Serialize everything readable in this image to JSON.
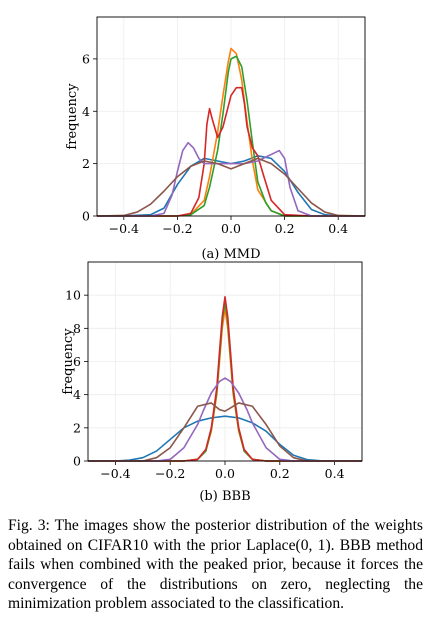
{
  "chart_data": [
    {
      "type": "line",
      "caption": "(a) MMD",
      "ylabel": "frequency",
      "xlabel": "",
      "xlim": [
        -0.5,
        0.5
      ],
      "ylim": [
        0,
        7.6
      ],
      "xticks": [
        "−0.4",
        "−0.2",
        "0.0",
        "0.2",
        "0.4"
      ],
      "yticks": [
        "0",
        "2",
        "4",
        "6"
      ],
      "grid": true,
      "series": [
        {
          "color": "#1f77b4",
          "x": [
            -0.5,
            -0.4,
            -0.3,
            -0.25,
            -0.2,
            -0.15,
            -0.1,
            -0.05,
            0.0,
            0.05,
            0.1,
            0.15,
            0.2,
            0.25,
            0.3,
            0.35,
            0.4,
            0.5
          ],
          "y": [
            0,
            0,
            0.05,
            0.3,
            1.2,
            1.9,
            2.2,
            2.1,
            2.0,
            2.1,
            2.3,
            2.2,
            1.7,
            0.9,
            0.25,
            0.05,
            0,
            0
          ]
        },
        {
          "color": "#ff7f0e",
          "x": [
            -0.5,
            -0.3,
            -0.2,
            -0.15,
            -0.1,
            -0.08,
            -0.05,
            -0.03,
            -0.01,
            0.0,
            0.02,
            0.04,
            0.06,
            0.08,
            0.1,
            0.15,
            0.2,
            0.3,
            0.5
          ],
          "y": [
            0,
            0,
            0,
            0.05,
            0.6,
            1.5,
            3.2,
            4.6,
            5.9,
            6.4,
            6.2,
            5.2,
            3.6,
            2.1,
            1.0,
            0.2,
            0,
            0,
            0
          ]
        },
        {
          "color": "#2ca02c",
          "x": [
            -0.5,
            -0.3,
            -0.2,
            -0.15,
            -0.1,
            -0.08,
            -0.05,
            -0.03,
            -0.01,
            0.0,
            0.02,
            0.04,
            0.06,
            0.08,
            0.1,
            0.13,
            0.15,
            0.2,
            0.3,
            0.5
          ],
          "y": [
            0,
            0,
            0,
            0.05,
            0.4,
            1.1,
            2.5,
            3.9,
            5.5,
            6.0,
            6.1,
            5.7,
            4.4,
            2.8,
            1.3,
            0.5,
            0.2,
            0,
            0,
            0
          ]
        },
        {
          "color": "#d62728",
          "x": [
            -0.5,
            -0.3,
            -0.2,
            -0.15,
            -0.12,
            -0.1,
            -0.09,
            -0.08,
            -0.07,
            -0.05,
            -0.03,
            -0.01,
            0.0,
            0.02,
            0.04,
            0.05,
            0.06,
            0.08,
            0.1,
            0.12,
            0.15,
            0.2,
            0.3,
            0.5
          ],
          "y": [
            0,
            0,
            0,
            0.1,
            0.7,
            2.0,
            3.5,
            4.1,
            3.7,
            3.0,
            3.4,
            4.2,
            4.6,
            4.9,
            4.9,
            4.3,
            3.4,
            2.6,
            2.3,
            1.6,
            0.6,
            0.05,
            0,
            0
          ]
        },
        {
          "color": "#9467bd",
          "x": [
            -0.5,
            -0.3,
            -0.25,
            -0.22,
            -0.2,
            -0.18,
            -0.16,
            -0.14,
            -0.12,
            -0.1,
            -0.05,
            0.0,
            0.05,
            0.1,
            0.12,
            0.14,
            0.16,
            0.18,
            0.2,
            0.22,
            0.25,
            0.3,
            0.5
          ],
          "y": [
            0,
            0,
            0.1,
            0.8,
            1.7,
            2.5,
            2.8,
            2.6,
            2.2,
            2.0,
            2.0,
            2.0,
            2.0,
            2.1,
            2.2,
            2.3,
            2.4,
            2.5,
            2.2,
            1.1,
            0.2,
            0,
            0
          ]
        },
        {
          "color": "#8c564b",
          "x": [
            -0.5,
            -0.4,
            -0.35,
            -0.3,
            -0.25,
            -0.2,
            -0.15,
            -0.1,
            -0.05,
            0.0,
            0.05,
            0.1,
            0.15,
            0.2,
            0.25,
            0.3,
            0.35,
            0.4,
            0.5
          ],
          "y": [
            0,
            0.02,
            0.15,
            0.45,
            0.95,
            1.5,
            1.9,
            2.1,
            2.0,
            1.8,
            2.0,
            2.2,
            2.0,
            1.6,
            1.05,
            0.5,
            0.15,
            0.02,
            0
          ]
        }
      ]
    },
    {
      "type": "line",
      "caption": "(b) BBB",
      "ylabel": "frequency",
      "xlabel": "",
      "xlim": [
        -0.5,
        0.5
      ],
      "ylim": [
        0,
        12
      ],
      "xticks": [
        "−0.4",
        "−0.2",
        "0.0",
        "0.2",
        "0.4"
      ],
      "yticks": [
        "0",
        "2",
        "4",
        "6",
        "8",
        "10"
      ],
      "grid": true,
      "series": [
        {
          "color": "#1f77b4",
          "x": [
            -0.5,
            -0.4,
            -0.35,
            -0.3,
            -0.25,
            -0.2,
            -0.15,
            -0.1,
            -0.05,
            0.0,
            0.05,
            0.1,
            0.15,
            0.2,
            0.25,
            0.3,
            0.35,
            0.4,
            0.5
          ],
          "y": [
            0,
            0,
            0.05,
            0.2,
            0.6,
            1.3,
            2.0,
            2.4,
            2.6,
            2.7,
            2.6,
            2.3,
            1.8,
            1.0,
            0.35,
            0.08,
            0.01,
            0,
            0
          ]
        },
        {
          "color": "#ff7f0e",
          "x": [
            -0.5,
            -0.15,
            -0.1,
            -0.07,
            -0.05,
            -0.03,
            -0.02,
            -0.01,
            0.0,
            0.01,
            0.02,
            0.03,
            0.05,
            0.07,
            0.1,
            0.15,
            0.5
          ],
          "y": [
            0,
            0,
            0.1,
            0.6,
            1.8,
            4.0,
            6.0,
            8.0,
            9.2,
            8.0,
            6.0,
            4.0,
            1.8,
            0.6,
            0.1,
            0,
            0
          ]
        },
        {
          "color": "#2ca02c",
          "x": [
            -0.5,
            -0.15,
            -0.1,
            -0.07,
            -0.05,
            -0.03,
            -0.02,
            -0.01,
            0.0,
            0.01,
            0.02,
            0.03,
            0.05,
            0.07,
            0.1,
            0.15,
            0.5
          ],
          "y": [
            0,
            0,
            0.1,
            0.6,
            1.9,
            4.2,
            6.3,
            8.4,
            9.6,
            8.4,
            6.3,
            4.2,
            1.9,
            0.6,
            0.1,
            0,
            0
          ]
        },
        {
          "color": "#d62728",
          "x": [
            -0.5,
            -0.15,
            -0.1,
            -0.07,
            -0.05,
            -0.03,
            -0.02,
            -0.01,
            0.0,
            0.01,
            0.02,
            0.03,
            0.05,
            0.07,
            0.1,
            0.15,
            0.5
          ],
          "y": [
            0,
            0,
            0.1,
            0.7,
            2.0,
            4.4,
            6.6,
            8.7,
            9.9,
            8.7,
            6.6,
            4.4,
            2.0,
            0.7,
            0.1,
            0,
            0
          ]
        },
        {
          "color": "#9467bd",
          "x": [
            -0.5,
            -0.25,
            -0.2,
            -0.15,
            -0.1,
            -0.08,
            -0.05,
            -0.02,
            0.0,
            0.02,
            0.05,
            0.08,
            0.1,
            0.15,
            0.2,
            0.25,
            0.5
          ],
          "y": [
            0,
            0,
            0.1,
            0.8,
            2.2,
            3.0,
            4.1,
            4.8,
            5.0,
            4.8,
            4.1,
            3.1,
            2.3,
            0.8,
            0.1,
            0,
            0
          ]
        },
        {
          "color": "#8c564b",
          "x": [
            -0.5,
            -0.3,
            -0.25,
            -0.2,
            -0.15,
            -0.1,
            -0.05,
            -0.02,
            0.0,
            0.02,
            0.05,
            0.1,
            0.15,
            0.2,
            0.25,
            0.3,
            0.5
          ],
          "y": [
            0,
            0,
            0.2,
            0.8,
            2.0,
            3.3,
            3.5,
            3.1,
            3.0,
            3.2,
            3.5,
            3.3,
            2.2,
            0.9,
            0.2,
            0,
            0
          ]
        }
      ]
    }
  ],
  "caption": {
    "text": "Fig. 3: The images show the posterior distribution of the weights obtained on CIFAR10 with the prior Laplace(0, 1). BBB method fails when combined with the peaked prior, because it forces the convergence of the distributions on zero, neglecting the minimization problem associated to the classification."
  }
}
